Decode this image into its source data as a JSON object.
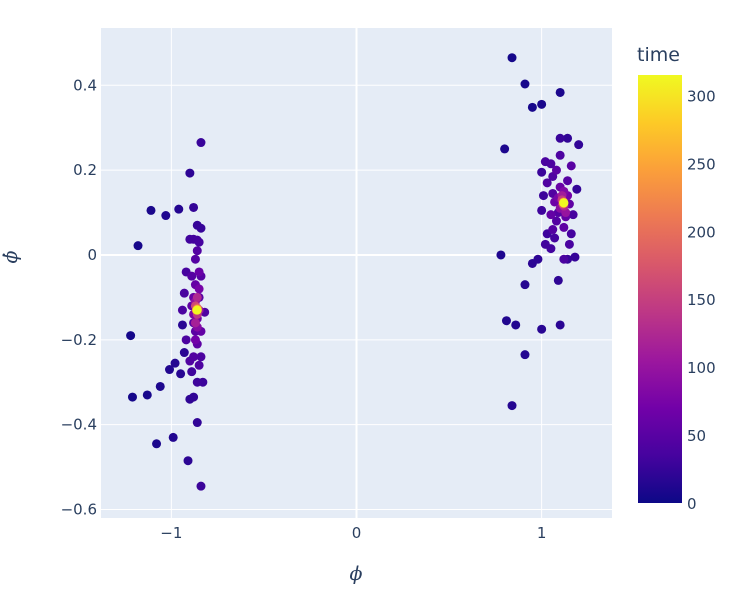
{
  "chart_data": {
    "type": "scatter",
    "title": "",
    "xlabel": "ϕ",
    "ylabel": "ϕ̇",
    "xlim": [
      -1.38,
      1.38
    ],
    "ylim": [
      -0.62,
      0.535
    ],
    "x_ticks": [
      -1,
      0,
      1
    ],
    "x_tick_labels": [
      "−1",
      "0",
      "1"
    ],
    "y_ticks": [
      -0.6,
      -0.4,
      -0.2,
      0,
      0.2,
      0.4
    ],
    "y_tick_labels": [
      "−0.6",
      "−0.4",
      "−0.2",
      "0",
      "0.2",
      "0.4"
    ],
    "grid": true,
    "plot_background": "#e5ecf6",
    "grid_color": "#ffffff",
    "colorbar": {
      "title": "time",
      "range": [
        0,
        315
      ],
      "ticks": [
        0,
        50,
        100,
        150,
        200,
        250,
        300
      ],
      "tick_labels": [
        "0",
        "50",
        "100",
        "150",
        "200",
        "250",
        "300"
      ],
      "colorscale": [
        "#0d0887",
        "#46039f",
        "#7201a8",
        "#9c179e",
        "#bd3786",
        "#d8576b",
        "#ed7953",
        "#fb9f3a",
        "#fdca26",
        "#f0f921"
      ]
    },
    "points": [
      {
        "x": -1.21,
        "y": -0.335,
        "t": 5
      },
      {
        "x": -1.22,
        "y": -0.19,
        "t": 5
      },
      {
        "x": -1.18,
        "y": 0.022,
        "t": 6
      },
      {
        "x": -1.13,
        "y": -0.33,
        "t": 7
      },
      {
        "x": -1.11,
        "y": 0.105,
        "t": 8
      },
      {
        "x": -1.08,
        "y": -0.445,
        "t": 9
      },
      {
        "x": -1.06,
        "y": -0.31,
        "t": 10
      },
      {
        "x": -1.03,
        "y": 0.093,
        "t": 11
      },
      {
        "x": -1.01,
        "y": -0.27,
        "t": 12
      },
      {
        "x": -0.99,
        "y": -0.43,
        "t": 13
      },
      {
        "x": -0.98,
        "y": -0.255,
        "t": 14
      },
      {
        "x": -0.96,
        "y": 0.108,
        "t": 15
      },
      {
        "x": -0.95,
        "y": -0.28,
        "t": 16
      },
      {
        "x": -0.94,
        "y": -0.165,
        "t": 17
      },
      {
        "x": -0.93,
        "y": -0.23,
        "t": 18
      },
      {
        "x": -0.91,
        "y": -0.485,
        "t": 19
      },
      {
        "x": -0.9,
        "y": 0.193,
        "t": 20
      },
      {
        "x": -0.9,
        "y": -0.34,
        "t": 21
      },
      {
        "x": -0.88,
        "y": -0.335,
        "t": 22
      },
      {
        "x": -0.86,
        "y": -0.395,
        "t": 23
      },
      {
        "x": -0.88,
        "y": 0.112,
        "t": 24
      },
      {
        "x": -0.86,
        "y": 0.07,
        "t": 25
      },
      {
        "x": -0.84,
        "y": 0.063,
        "t": 26
      },
      {
        "x": -0.84,
        "y": 0.265,
        "t": 27
      },
      {
        "x": -0.84,
        "y": -0.545,
        "t": 28
      },
      {
        "x": -0.83,
        "y": -0.3,
        "t": 29
      },
      {
        "x": -0.86,
        "y": -0.3,
        "t": 30
      },
      {
        "x": -0.89,
        "y": -0.275,
        "t": 31
      },
      {
        "x": -0.9,
        "y": 0.037,
        "t": 32
      },
      {
        "x": -0.88,
        "y": 0.037,
        "t": 33
      },
      {
        "x": -0.86,
        "y": 0.035,
        "t": 34
      },
      {
        "x": -0.85,
        "y": 0.03,
        "t": 35
      },
      {
        "x": -0.92,
        "y": -0.04,
        "t": 36
      },
      {
        "x": -0.93,
        "y": -0.09,
        "t": 37
      },
      {
        "x": -0.94,
        "y": -0.13,
        "t": 38
      },
      {
        "x": -0.92,
        "y": -0.2,
        "t": 39
      },
      {
        "x": -0.84,
        "y": -0.24,
        "t": 40
      },
      {
        "x": -0.85,
        "y": -0.26,
        "t": 41
      },
      {
        "x": -0.82,
        "y": -0.135,
        "t": 42
      },
      {
        "x": -0.9,
        "y": -0.25,
        "t": 43
      },
      {
        "x": -0.88,
        "y": -0.24,
        "t": 44
      },
      {
        "x": -0.86,
        "y": 0.01,
        "t": 45
      },
      {
        "x": -0.87,
        "y": -0.01,
        "t": 46
      },
      {
        "x": -0.89,
        "y": -0.05,
        "t": 47
      },
      {
        "x": -0.84,
        "y": -0.05,
        "t": 48
      },
      {
        "x": -0.85,
        "y": -0.1,
        "t": 49
      },
      {
        "x": -0.88,
        "y": -0.16,
        "t": 50
      },
      {
        "x": -0.87,
        "y": -0.18,
        "t": 52
      },
      {
        "x": -0.86,
        "y": -0.21,
        "t": 54
      },
      {
        "x": -0.89,
        "y": -0.12,
        "t": 56
      },
      {
        "x": -0.84,
        "y": -0.18,
        "t": 58
      },
      {
        "x": -0.87,
        "y": -0.07,
        "t": 60
      },
      {
        "x": -0.85,
        "y": -0.04,
        "t": 62
      },
      {
        "x": -0.88,
        "y": -0.1,
        "t": 64
      },
      {
        "x": -0.86,
        "y": -0.15,
        "t": 66
      },
      {
        "x": -0.87,
        "y": -0.2,
        "t": 70
      },
      {
        "x": -0.85,
        "y": -0.08,
        "t": 74
      },
      {
        "x": -0.88,
        "y": -0.14,
        "t": 80
      },
      {
        "x": -0.86,
        "y": -0.17,
        "t": 86
      },
      {
        "x": -0.87,
        "y": -0.11,
        "t": 95
      },
      {
        "x": -0.85,
        "y": -0.13,
        "t": 105
      },
      {
        "x": -0.87,
        "y": -0.16,
        "t": 115
      },
      {
        "x": -0.86,
        "y": -0.1,
        "t": 125
      },
      {
        "x": -0.86,
        "y": -0.14,
        "t": 140
      },
      {
        "x": -0.87,
        "y": -0.12,
        "t": 160
      },
      {
        "x": -0.86,
        "y": -0.125,
        "t": 185
      },
      {
        "x": -0.865,
        "y": -0.13,
        "t": 215
      },
      {
        "x": -0.86,
        "y": -0.128,
        "t": 250
      },
      {
        "x": -0.862,
        "y": -0.13,
        "t": 290
      },
      {
        "x": -0.86,
        "y": -0.13,
        "t": 315
      },
      {
        "x": 0.84,
        "y": 0.465,
        "t": 5
      },
      {
        "x": 0.91,
        "y": 0.403,
        "t": 6
      },
      {
        "x": 0.95,
        "y": 0.348,
        "t": 7
      },
      {
        "x": 1.0,
        "y": 0.355,
        "t": 8
      },
      {
        "x": 1.1,
        "y": 0.383,
        "t": 9
      },
      {
        "x": 0.8,
        "y": 0.25,
        "t": 10
      },
      {
        "x": 0.78,
        "y": 0.0,
        "t": 11
      },
      {
        "x": 0.81,
        "y": -0.155,
        "t": 12
      },
      {
        "x": 0.86,
        "y": -0.165,
        "t": 13
      },
      {
        "x": 0.91,
        "y": -0.235,
        "t": 14
      },
      {
        "x": 0.84,
        "y": -0.355,
        "t": 15
      },
      {
        "x": 0.91,
        "y": -0.07,
        "t": 16
      },
      {
        "x": 1.0,
        "y": -0.175,
        "t": 17
      },
      {
        "x": 1.1,
        "y": -0.165,
        "t": 18
      },
      {
        "x": 0.95,
        "y": -0.02,
        "t": 19
      },
      {
        "x": 0.98,
        "y": -0.01,
        "t": 20
      },
      {
        "x": 1.09,
        "y": -0.06,
        "t": 21
      },
      {
        "x": 1.14,
        "y": 0.275,
        "t": 22
      },
      {
        "x": 1.2,
        "y": 0.26,
        "t": 23
      },
      {
        "x": 1.19,
        "y": 0.155,
        "t": 24
      },
      {
        "x": 1.18,
        "y": -0.005,
        "t": 25
      },
      {
        "x": 1.14,
        "y": -0.01,
        "t": 26
      },
      {
        "x": 1.1,
        "y": 0.275,
        "t": 27
      },
      {
        "x": 1.0,
        "y": 0.195,
        "t": 28
      },
      {
        "x": 1.01,
        "y": 0.14,
        "t": 29
      },
      {
        "x": 1.0,
        "y": 0.105,
        "t": 30
      },
      {
        "x": 1.03,
        "y": 0.05,
        "t": 31
      },
      {
        "x": 1.02,
        "y": 0.025,
        "t": 32
      },
      {
        "x": 1.05,
        "y": 0.015,
        "t": 33
      },
      {
        "x": 1.07,
        "y": 0.04,
        "t": 34
      },
      {
        "x": 1.16,
        "y": 0.05,
        "t": 35
      },
      {
        "x": 1.17,
        "y": 0.095,
        "t": 36
      },
      {
        "x": 1.15,
        "y": 0.025,
        "t": 37
      },
      {
        "x": 1.12,
        "y": -0.01,
        "t": 38
      },
      {
        "x": 1.02,
        "y": 0.22,
        "t": 39
      },
      {
        "x": 1.05,
        "y": 0.215,
        "t": 40
      },
      {
        "x": 1.1,
        "y": 0.235,
        "t": 41
      },
      {
        "x": 1.06,
        "y": 0.185,
        "t": 42
      },
      {
        "x": 1.03,
        "y": 0.17,
        "t": 43
      },
      {
        "x": 1.06,
        "y": 0.145,
        "t": 44
      },
      {
        "x": 1.08,
        "y": 0.08,
        "t": 45
      },
      {
        "x": 1.06,
        "y": 0.06,
        "t": 46
      },
      {
        "x": 1.09,
        "y": 0.1,
        "t": 47
      },
      {
        "x": 1.14,
        "y": 0.175,
        "t": 48
      },
      {
        "x": 1.16,
        "y": 0.21,
        "t": 50
      },
      {
        "x": 1.08,
        "y": 0.2,
        "t": 52
      },
      {
        "x": 1.12,
        "y": 0.065,
        "t": 54
      },
      {
        "x": 1.15,
        "y": 0.12,
        "t": 56
      },
      {
        "x": 1.05,
        "y": 0.095,
        "t": 58
      },
      {
        "x": 1.13,
        "y": 0.09,
        "t": 60
      },
      {
        "x": 1.1,
        "y": 0.16,
        "t": 63
      },
      {
        "x": 1.07,
        "y": 0.125,
        "t": 66
      },
      {
        "x": 1.14,
        "y": 0.14,
        "t": 70
      },
      {
        "x": 1.09,
        "y": 0.135,
        "t": 75
      },
      {
        "x": 1.12,
        "y": 0.15,
        "t": 82
      },
      {
        "x": 1.1,
        "y": 0.11,
        "t": 90
      },
      {
        "x": 1.13,
        "y": 0.1,
        "t": 100
      },
      {
        "x": 1.11,
        "y": 0.14,
        "t": 110
      },
      {
        "x": 1.12,
        "y": 0.115,
        "t": 125
      },
      {
        "x": 1.11,
        "y": 0.13,
        "t": 145
      },
      {
        "x": 1.115,
        "y": 0.12,
        "t": 175
      },
      {
        "x": 1.118,
        "y": 0.125,
        "t": 210
      },
      {
        "x": 1.12,
        "y": 0.122,
        "t": 250
      },
      {
        "x": 1.118,
        "y": 0.123,
        "t": 290
      },
      {
        "x": 1.12,
        "y": 0.123,
        "t": 315
      }
    ]
  }
}
